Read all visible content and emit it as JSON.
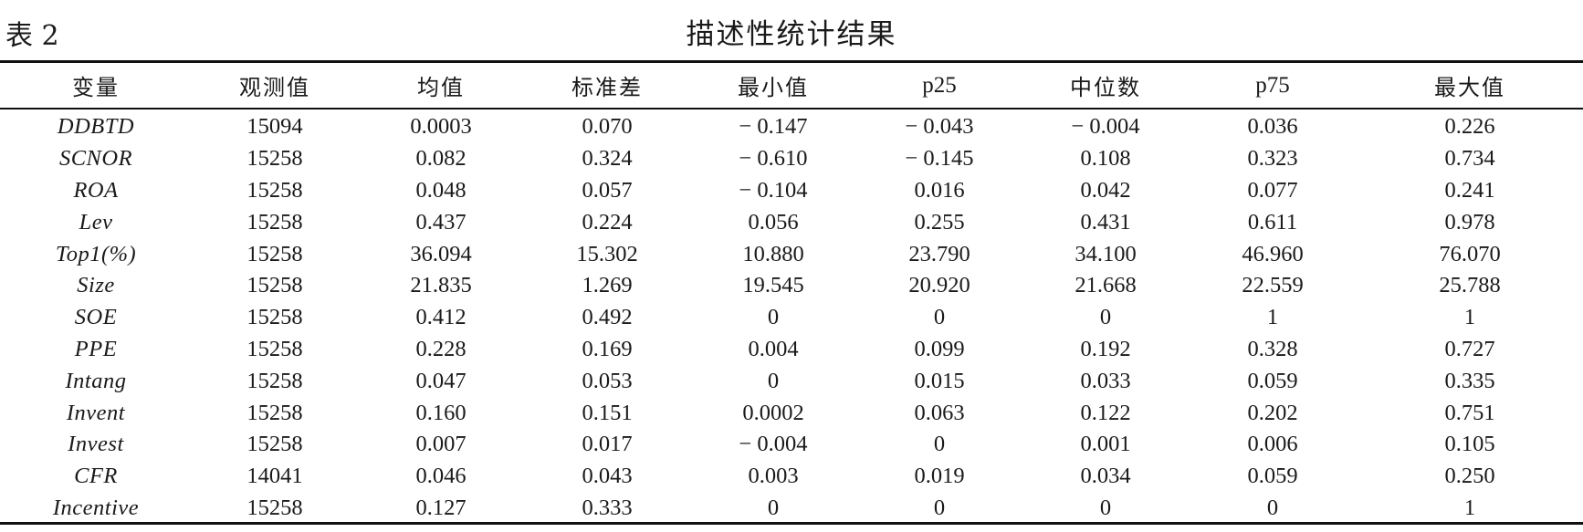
{
  "caption": {
    "label": "表 2",
    "title": "描述性统计结果"
  },
  "table": {
    "headers": [
      "变量",
      "观测值",
      "均值",
      "标准差",
      "最小值",
      "p25",
      "中位数",
      "p75",
      "最大值"
    ],
    "rows": [
      [
        "DDBTD",
        "15094",
        "0.0003",
        "0.070",
        "− 0.147",
        "− 0.043",
        "− 0.004",
        "0.036",
        "0.226"
      ],
      [
        "SCNOR",
        "15258",
        "0.082",
        "0.324",
        "− 0.610",
        "− 0.145",
        "0.108",
        "0.323",
        "0.734"
      ],
      [
        "ROA",
        "15258",
        "0.048",
        "0.057",
        "− 0.104",
        "0.016",
        "0.042",
        "0.077",
        "0.241"
      ],
      [
        "Lev",
        "15258",
        "0.437",
        "0.224",
        "0.056",
        "0.255",
        "0.431",
        "0.611",
        "0.978"
      ],
      [
        "Top1(%)",
        "15258",
        "36.094",
        "15.302",
        "10.880",
        "23.790",
        "34.100",
        "46.960",
        "76.070"
      ],
      [
        "Size",
        "15258",
        "21.835",
        "1.269",
        "19.545",
        "20.920",
        "21.668",
        "22.559",
        "25.788"
      ],
      [
        "SOE",
        "15258",
        "0.412",
        "0.492",
        "0",
        "0",
        "0",
        "1",
        "1"
      ],
      [
        "PPE",
        "15258",
        "0.228",
        "0.169",
        "0.004",
        "0.099",
        "0.192",
        "0.328",
        "0.727"
      ],
      [
        "Intang",
        "15258",
        "0.047",
        "0.053",
        "0",
        "0.015",
        "0.033",
        "0.059",
        "0.335"
      ],
      [
        "Invent",
        "15258",
        "0.160",
        "0.151",
        "0.0002",
        "0.063",
        "0.122",
        "0.202",
        "0.751"
      ],
      [
        "Invest",
        "15258",
        "0.007",
        "0.017",
        "− 0.004",
        "0",
        "0.001",
        "0.006",
        "0.105"
      ],
      [
        "CFR",
        "14041",
        "0.046",
        "0.043",
        "0.003",
        "0.019",
        "0.034",
        "0.059",
        "0.250"
      ],
      [
        "Incentive",
        "15258",
        "0.127",
        "0.333",
        "0",
        "0",
        "0",
        "0",
        "1"
      ]
    ]
  }
}
